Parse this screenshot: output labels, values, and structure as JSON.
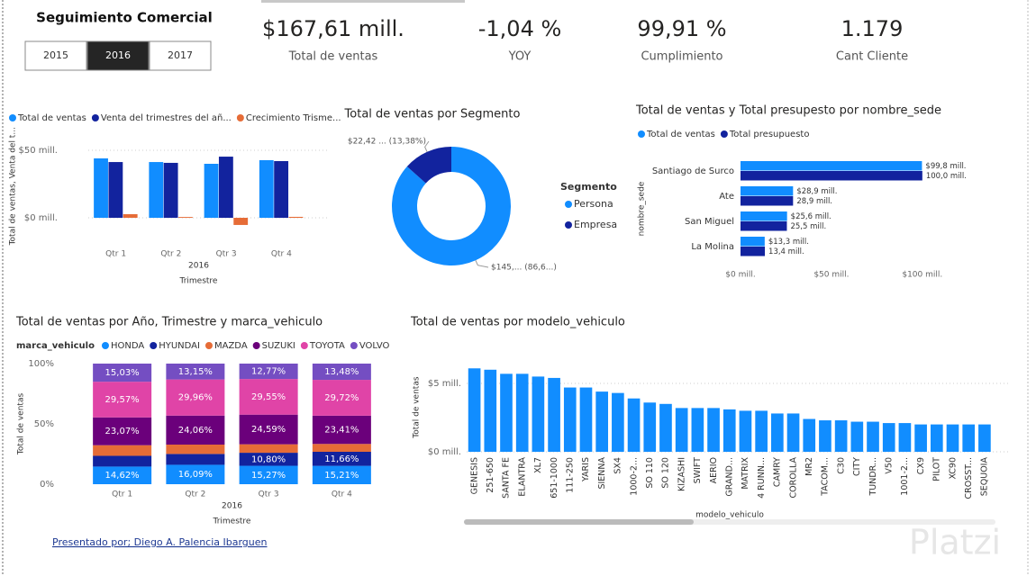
{
  "header": {
    "title": "Seguimiento Comercial",
    "years": [
      "2015",
      "2016",
      "2017"
    ],
    "selected": "2016"
  },
  "kpis": [
    {
      "value": "$167,61 mill.",
      "label": "Total de ventas"
    },
    {
      "value": "-1,04 %",
      "label": "YOY"
    },
    {
      "value": "99,91 %",
      "label": "Cumplimiento"
    },
    {
      "value": "1.179",
      "label": "Cant Cliente"
    }
  ],
  "footer": "Presentado por; Diego A. Palencia Ibarguen",
  "watermark": "Platzi",
  "chart_data": [
    {
      "type": "bar",
      "y_label": "Total de ventas, Venta del t...",
      "x_label": "Trimestre",
      "x_group": "2016",
      "categories": [
        "Qtr 1",
        "Qtr 2",
        "Qtr 3",
        "Qtr 4"
      ],
      "series": [
        {
          "name": "Total de ventas",
          "color": "#118DFF",
          "values": [
            44,
            41.3,
            40,
            42.7
          ]
        },
        {
          "name": "Venta del trimestres del añ...",
          "color": "#12239E",
          "values": [
            41.3,
            40.7,
            45.3,
            42
          ]
        },
        {
          "name": "Crecimiento Trisme...",
          "color": "#E66C37",
          "values": [
            2.7,
            0.6,
            -5.3,
            0.7
          ]
        }
      ],
      "ylim": [
        -8,
        55
      ],
      "yticks": [
        {
          "value": 0,
          "label": "$0 mill."
        },
        {
          "value": 50,
          "label": "$50 mill."
        }
      ],
      "grid": true
    },
    {
      "type": "donut",
      "title": "Total de ventas por Segmento",
      "legend_title": "Segmento",
      "categories": [
        "Persona",
        "Empresa"
      ],
      "values": [
        145.19,
        22.42
      ],
      "value_labels": [
        "$145,... (86,6...)",
        "$22,42 ... (13,38%)"
      ],
      "colors": [
        "#118DFF",
        "#12239E"
      ]
    },
    {
      "type": "horizontal_bar",
      "title": "Total de ventas y Total presupesto por nombre_sede",
      "y_label": "nombre_sede",
      "categories": [
        "Santiago de Surco",
        "Ate",
        "San Miguel",
        "La Molina"
      ],
      "series": [
        {
          "name": "Total de ventas",
          "color": "#118DFF",
          "values": [
            99.8,
            28.9,
            25.6,
            13.3
          ],
          "value_labels": [
            "$99,8 mill.",
            "$28,9 mill.",
            "$25,6 mill.",
            "$13,3 mill."
          ]
        },
        {
          "name": "Total presupuesto",
          "color": "#12239E",
          "values": [
            100.0,
            28.9,
            25.5,
            13.4
          ],
          "value_labels": [
            "100,0 mill.",
            "28,9 mill.",
            "25,5 mill.",
            "13,4 mill."
          ]
        }
      ],
      "xlim": [
        0,
        110
      ],
      "xticks": [
        {
          "value": 0,
          "label": "$0 mill."
        },
        {
          "value": 50,
          "label": "$50 mill."
        },
        {
          "value": 100,
          "label": "$100 mill."
        }
      ]
    },
    {
      "type": "stacked_bar_100",
      "title": "Total de ventas por Año, Trimestre y marca_vehiculo",
      "legend_title": "marca_vehiculo",
      "y_label": "Total de ventas",
      "x_label": "Trimestre",
      "x_group": "2016",
      "categories": [
        "Qtr 1",
        "Qtr 2",
        "Qtr 3",
        "Qtr 4"
      ],
      "series": [
        {
          "name": "HONDA",
          "color": "#118DFF",
          "values": [
            14.62,
            16.09,
            15.27,
            15.21
          ],
          "value_labels": [
            "14,62%",
            "16,09%",
            "15,27%",
            "15,21%"
          ]
        },
        {
          "name": "HYUNDAI",
          "color": "#12239E",
          "values": [
            8.9,
            9,
            10.8,
            11.66
          ],
          "value_labels": [
            null,
            null,
            "10,80%",
            "11,66%"
          ]
        },
        {
          "name": "MAZDA",
          "color": "#E66C37",
          "values": [
            8.81,
            7.74,
            7.02,
            6.52
          ]
        },
        {
          "name": "SUZUKI",
          "color": "#6B007B",
          "values": [
            23.07,
            24.06,
            24.59,
            23.41
          ],
          "value_labels": [
            "23,07%",
            "24,06%",
            "24,59%",
            "23,41%"
          ]
        },
        {
          "name": "TOYOTA",
          "color": "#E044A7",
          "values": [
            29.57,
            29.96,
            29.55,
            29.72
          ],
          "value_labels": [
            "29,57%",
            "29,96%",
            "29,55%",
            "29,72%"
          ]
        },
        {
          "name": "VOLVO",
          "color": "#744EC2",
          "values": [
            15.03,
            13.15,
            12.77,
            13.48
          ],
          "value_labels": [
            "15,03%",
            "13,15%",
            "12,77%",
            "13,48%"
          ]
        }
      ],
      "ylim": [
        0,
        100
      ],
      "yticks": [
        {
          "value": 0,
          "label": "0%"
        },
        {
          "value": 50,
          "label": "50%"
        },
        {
          "value": 100,
          "label": "100%"
        }
      ]
    },
    {
      "type": "bar",
      "title": "Total de ventas por modelo_vehiculo",
      "y_label": "Total de ventas",
      "x_label": "modelo_vehiculo",
      "categories": [
        "GENESIS",
        "251-650",
        "SANTA FE",
        "ELANTRA",
        "XL7",
        "651-1000",
        "111-250",
        "YARIS",
        "SIENNA",
        "SX4",
        "1000-2...",
        "SO 110",
        "SO 120",
        "KIZASHI",
        "SWIFT",
        "AERIO",
        "GRAND...",
        "MATRIX",
        "4 RUNN...",
        "CAMRY",
        "COROLLA",
        "MR2",
        "TACOM...",
        "C30",
        "CITY",
        "TUNDR...",
        "V50",
        "1001-2...",
        "CX9",
        "PILOT",
        "XC90",
        "CROSST...",
        "SEQUOIA"
      ],
      "values": [
        6.1,
        6.0,
        5.7,
        5.7,
        5.5,
        5.4,
        4.7,
        4.7,
        4.4,
        4.3,
        3.9,
        3.6,
        3.5,
        3.2,
        3.2,
        3.2,
        3.1,
        3.0,
        3.0,
        2.8,
        2.8,
        2.4,
        2.3,
        2.3,
        2.2,
        2.2,
        2.1,
        2.1,
        2.0,
        2.0,
        2.0,
        2.0,
        2.0
      ],
      "color": "#118DFF",
      "ylim": [
        0,
        6.5
      ],
      "yticks": [
        {
          "value": 0,
          "label": "$0 mill."
        },
        {
          "value": 5,
          "label": "$5 mill."
        }
      ],
      "grid": true
    }
  ]
}
